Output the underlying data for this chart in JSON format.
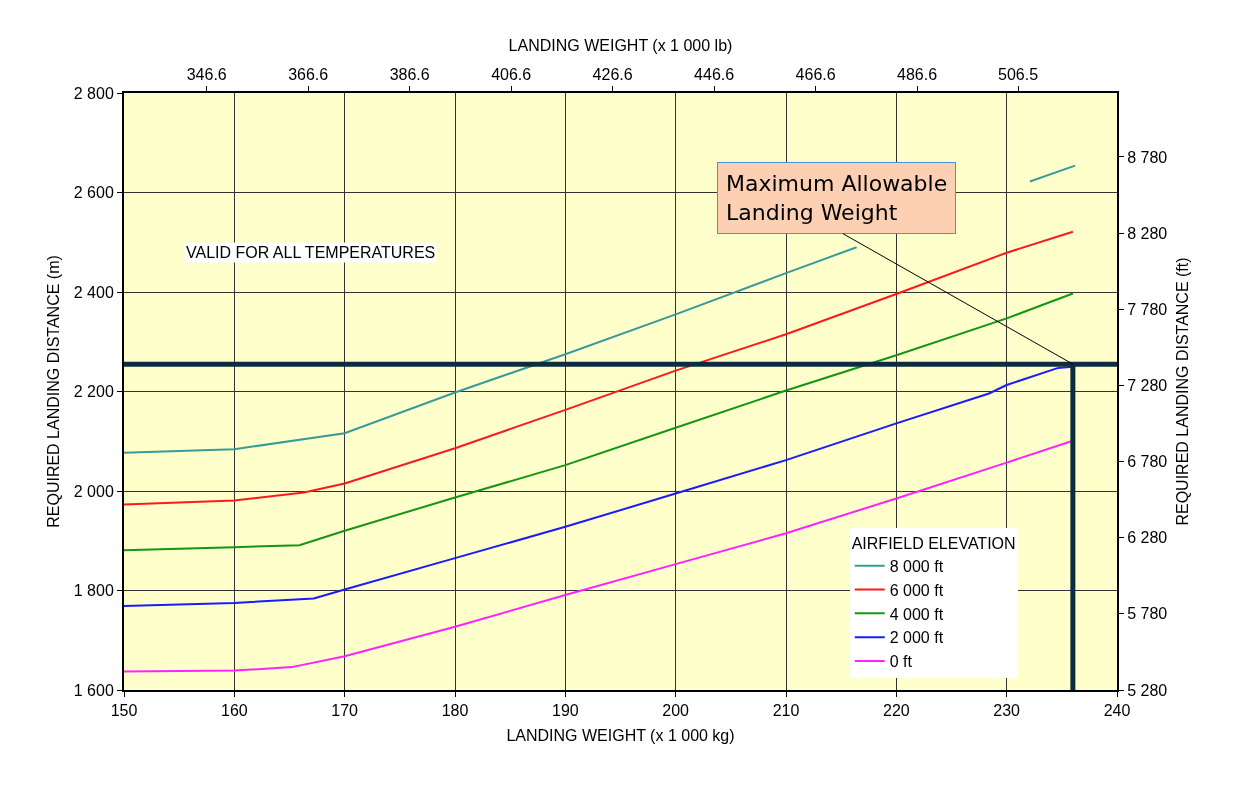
{
  "chart_data": {
    "type": "line",
    "xlabel": "LANDING WEIGHT (x 1 000 kg)",
    "x2label": "LANDING WEIGHT (x 1 000 lb)",
    "ylabel": "REQUIRED LANDING DISTANCE (m)",
    "y2label": "REQUIRED LANDING DISTANCE (ft)",
    "legend_title": "AIRFIELD ELEVATION",
    "legend": "bottom right",
    "grid": true,
    "xlim": [
      150,
      240
    ],
    "xticks": [
      150,
      160,
      170,
      180,
      190,
      200,
      210,
      220,
      230,
      240
    ],
    "x2lim": [
      330.3,
      526.0
    ],
    "x2ticks": [
      346.6,
      366.6,
      386.6,
      406.6,
      426.6,
      446.6,
      466.6,
      486.6,
      506.5
    ],
    "ylim": [
      1600,
      2800
    ],
    "yticks": [
      {
        "value": 1600,
        "label": "1 600"
      },
      {
        "value": 1800,
        "label": "1 800"
      },
      {
        "value": 2000,
        "label": "2 000"
      },
      {
        "value": 2200,
        "label": "2 200"
      },
      {
        "value": 2400,
        "label": "2 400"
      },
      {
        "value": 2600,
        "label": "2 600"
      },
      {
        "value": 2800,
        "label": "2 800"
      }
    ],
    "y2lim": [
      5280,
      9200
    ],
    "y2ticks": [
      {
        "value": 5280,
        "label": "5 280"
      },
      {
        "value": 5780,
        "label": "5 780"
      },
      {
        "value": 6280,
        "label": "6 280"
      },
      {
        "value": 6780,
        "label": "6 780"
      },
      {
        "value": 7280,
        "label": "7 280"
      },
      {
        "value": 7780,
        "label": "7 780"
      },
      {
        "value": 8280,
        "label": "8 280"
      },
      {
        "value": 8780,
        "label": "8 780"
      }
    ],
    "series": [
      {
        "name": "8 000 ft",
        "color": "#3a9a9a",
        "x": [
          150,
          160,
          170,
          180,
          190,
          200,
          210,
          216.4,
          220,
          230,
          232.1,
          236.2
        ],
        "values": [
          2077,
          2084,
          2116,
          2198,
          2275,
          2355,
          2438,
          2490,
          null,
          null,
          2622,
          2654
        ]
      },
      {
        "name": "6 000 ft",
        "color": "#ff1a1a",
        "x": [
          150,
          160,
          166.3,
          170,
          180,
          190,
          200,
          210,
          220,
          230,
          236
        ],
        "values": [
          1973,
          1981,
          1997,
          2015,
          2086,
          2163,
          2242,
          2315,
          2396,
          2479,
          2521
        ]
      },
      {
        "name": "4 000 ft",
        "color": "#149614",
        "x": [
          150,
          160,
          165.9,
          170,
          180,
          190,
          200,
          210,
          220,
          230,
          236
        ],
        "values": [
          1881,
          1887,
          1891,
          1920,
          1987,
          2052,
          2127,
          2202,
          2273,
          2347,
          2397
        ]
      },
      {
        "name": "2 000 ft",
        "color": "#1a1aff",
        "x": [
          150,
          160,
          167.2,
          170,
          180,
          190,
          200,
          210,
          220,
          228.4,
          230,
          234.6,
          236
        ],
        "values": [
          1769,
          1775,
          1784,
          1802,
          1865,
          1928,
          1995,
          2062,
          2136,
          2196,
          2213,
          2247,
          2250
        ]
      },
      {
        "name": "0 ft",
        "color": "#ff22ff",
        "x": [
          150,
          160,
          165.2,
          170,
          180,
          190,
          200,
          210,
          220,
          230,
          236
        ],
        "values": [
          1637,
          1639,
          1646,
          1668,
          1727,
          1791,
          1853,
          1915,
          1985,
          2057,
          2101
        ]
      }
    ],
    "ref_lines": [
      {
        "axis": "y",
        "value": 2255,
        "color": "#0b2d3d"
      },
      {
        "axis": "x",
        "value": 236,
        "color": "#0b2d3d"
      }
    ],
    "annotations": [
      "VALID FOR ALL TEMPERATURES",
      {
        "text": "Maximum Allowable\nLanding Weight",
        "x": 236,
        "y": 2255
      }
    ]
  }
}
